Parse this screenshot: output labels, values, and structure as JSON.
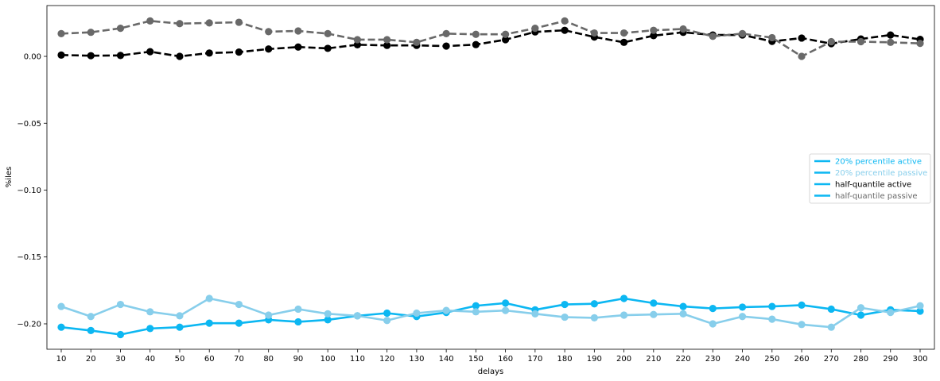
{
  "chart_data": {
    "type": "line",
    "xlabel": "delays",
    "ylabel": "%iles",
    "x": [
      10,
      20,
      30,
      40,
      50,
      60,
      70,
      80,
      90,
      100,
      110,
      120,
      130,
      140,
      150,
      160,
      170,
      180,
      190,
      200,
      210,
      220,
      230,
      240,
      250,
      260,
      270,
      280,
      290,
      300
    ],
    "ylim": [
      -0.219,
      0.038
    ],
    "yticks": [
      0.0,
      -0.05,
      -0.1,
      -0.15,
      -0.2
    ],
    "ytick_labels": [
      "0.00",
      "−0.05",
      "−0.10",
      "−0.15",
      "−0.20"
    ],
    "grid": false,
    "legend_position": "center-right",
    "series": [
      {
        "name": "20% percentile active",
        "color": "#0cb7f2",
        "line_style": "solid",
        "values": [
          -0.2025,
          -0.205,
          -0.208,
          -0.2035,
          -0.2025,
          -0.1995,
          -0.1995,
          -0.197,
          -0.1985,
          -0.197,
          -0.194,
          -0.192,
          -0.1945,
          -0.1915,
          -0.1865,
          -0.1845,
          -0.1895,
          -0.1855,
          -0.185,
          -0.181,
          -0.1845,
          -0.187,
          -0.1885,
          -0.1875,
          -0.187,
          -0.186,
          -0.189,
          -0.1935,
          -0.1895,
          -0.1905
        ]
      },
      {
        "name": "20% percentile passive",
        "color": "#87ceeb",
        "line_style": "solid",
        "values": [
          -0.187,
          -0.1945,
          -0.1855,
          -0.191,
          -0.194,
          -0.181,
          -0.1855,
          -0.1935,
          -0.189,
          -0.1925,
          -0.194,
          -0.1975,
          -0.192,
          -0.19,
          -0.191,
          -0.19,
          -0.1925,
          -0.195,
          -0.1955,
          -0.1935,
          -0.193,
          -0.1925,
          -0.2,
          -0.1945,
          -0.1965,
          -0.2005,
          -0.2025,
          -0.188,
          -0.1915,
          -0.1865
        ]
      },
      {
        "name": "half-quantile active",
        "color": "#000000",
        "line_style": "dashed",
        "values": [
          0.001,
          0.0005,
          0.0007,
          0.0035,
          0.0,
          0.0025,
          0.0032,
          0.0055,
          0.007,
          0.006,
          0.0087,
          0.0082,
          0.0082,
          0.0077,
          0.0088,
          0.0125,
          0.0183,
          0.0195,
          0.0145,
          0.0105,
          0.0155,
          0.018,
          0.016,
          0.016,
          0.0112,
          0.0137,
          0.0095,
          0.013,
          0.016,
          0.0127
        ]
      },
      {
        "name": "half-quantile passive",
        "color": "#696969",
        "line_style": "dashed",
        "values": [
          0.017,
          0.018,
          0.021,
          0.0265,
          0.0245,
          0.025,
          0.0255,
          0.0185,
          0.019,
          0.017,
          0.0125,
          0.0125,
          0.0105,
          0.017,
          0.0165,
          0.0165,
          0.021,
          0.0265,
          0.0175,
          0.0175,
          0.0195,
          0.0205,
          0.015,
          0.017,
          0.014,
          0.0,
          0.011,
          0.011,
          0.0105,
          0.0097
        ]
      }
    ]
  }
}
